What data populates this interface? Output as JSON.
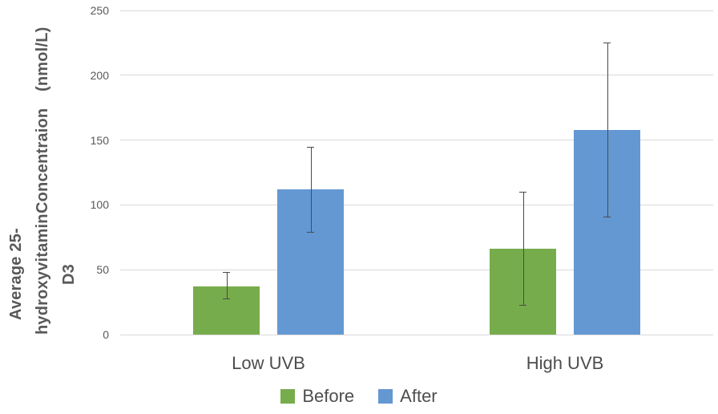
{
  "chart_data": {
    "type": "bar",
    "title": "",
    "xlabel": "",
    "ylabel": "Average 25-hydroxyvitamin D3 Concentraion (nmol/L)",
    "ylabel_lines": [
      "Average 25-hydroxyvitamin D3",
      "Concentraion",
      "(nmol/L)"
    ],
    "categories": [
      "Low UVB",
      "High UVB"
    ],
    "series": [
      {
        "name": "Before",
        "color": "#77AC4C",
        "values": [
          37,
          66
        ],
        "error_plus": [
          11,
          44
        ],
        "error_minus": [
          9,
          43
        ]
      },
      {
        "name": "After",
        "color": "#6498D3",
        "values": [
          112,
          158
        ],
        "error_plus": [
          33,
          67
        ],
        "error_minus": [
          33,
          67
        ]
      }
    ],
    "ylim": [
      0,
      250
    ],
    "yticks": [
      0,
      50,
      100,
      150,
      200,
      250
    ],
    "grid": true,
    "legend_position": "bottom",
    "colors": {
      "background": "#FFFFFF",
      "text": "#595959",
      "category_text": "#4D4D4D",
      "gridline": "#D9D9D9",
      "error_bar": "#4A4A4A"
    }
  }
}
